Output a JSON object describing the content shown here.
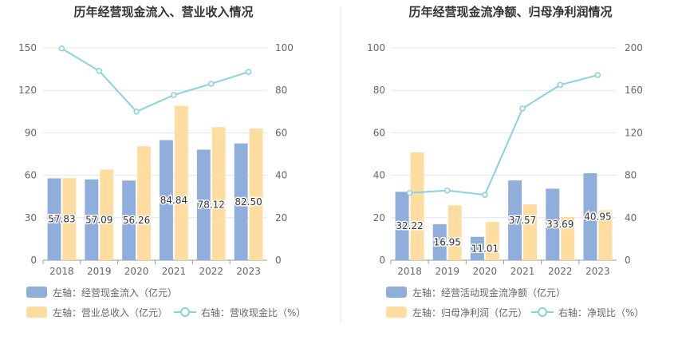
{
  "colors": {
    "bar_primary": "#8FAEDC",
    "bar_secondary": "#FFDCA0",
    "line": "#88D3DB",
    "grid": "#E3E6F0",
    "axis": "#999999",
    "divider": "#E8E8E8"
  },
  "chart_data": [
    {
      "type": "bar",
      "title": "历年经营现金流入、营业收入情况",
      "categories": [
        "2018",
        "2019",
        "2020",
        "2021",
        "2022",
        "2023"
      ],
      "left_axis": {
        "ylim": [
          0,
          150
        ],
        "ticks": [
          "0",
          "30",
          "60",
          "90",
          "120",
          "150"
        ]
      },
      "right_axis": {
        "ylim": [
          0,
          100
        ],
        "ticks": [
          "0",
          "20",
          "40",
          "60",
          "80",
          "100"
        ]
      },
      "series": [
        {
          "name": "左轴：经营现金流入（亿元）",
          "kind": "bar",
          "axis": "left",
          "values": [
            57.83,
            57.09,
            56.26,
            84.84,
            78.12,
            82.5
          ],
          "labels": [
            "57.83",
            "57.09",
            "56.26",
            "84.84",
            "78.12",
            "82.50"
          ]
        },
        {
          "name": "左轴：营业总收入（亿元）",
          "kind": "bar",
          "axis": "left",
          "values": [
            58.0,
            64.0,
            80.5,
            109.0,
            94.0,
            93.0
          ]
        },
        {
          "name": "右轴：营收现金比（%）",
          "kind": "line",
          "axis": "right",
          "values": [
            99.7,
            89.2,
            70.0,
            77.8,
            83.1,
            88.7
          ]
        }
      ],
      "legend_position": "bottom-left",
      "grid": true
    },
    {
      "type": "bar",
      "title": "历年经营现金流净额、归母净利润情况",
      "categories": [
        "2018",
        "2019",
        "2020",
        "2021",
        "2022",
        "2023"
      ],
      "left_axis": {
        "ylim": [
          0,
          100
        ],
        "ticks": [
          "0",
          "20",
          "40",
          "60",
          "80",
          "100"
        ]
      },
      "right_axis": {
        "ylim": [
          0,
          200
        ],
        "ticks": [
          "0",
          "40",
          "80",
          "120",
          "160",
          "200"
        ]
      },
      "series": [
        {
          "name": "左轴：经营活动现金流净额（亿元）",
          "kind": "bar",
          "axis": "left",
          "values": [
            32.22,
            16.95,
            11.01,
            37.57,
            33.69,
            40.95
          ],
          "labels": [
            "32.22",
            "16.95",
            "11.01",
            "37.57",
            "33.69",
            "40.95"
          ]
        },
        {
          "name": "左轴：归母净利润（亿元）",
          "kind": "bar",
          "axis": "left",
          "values": [
            50.8,
            25.8,
            18.0,
            26.3,
            20.4,
            23.5
          ]
        },
        {
          "name": "右轴：净现比（%）",
          "kind": "line",
          "axis": "right",
          "values": [
            63.4,
            65.7,
            61.6,
            142.9,
            165.1,
            174.4
          ]
        }
      ],
      "legend_position": "bottom-left",
      "grid": true
    }
  ]
}
